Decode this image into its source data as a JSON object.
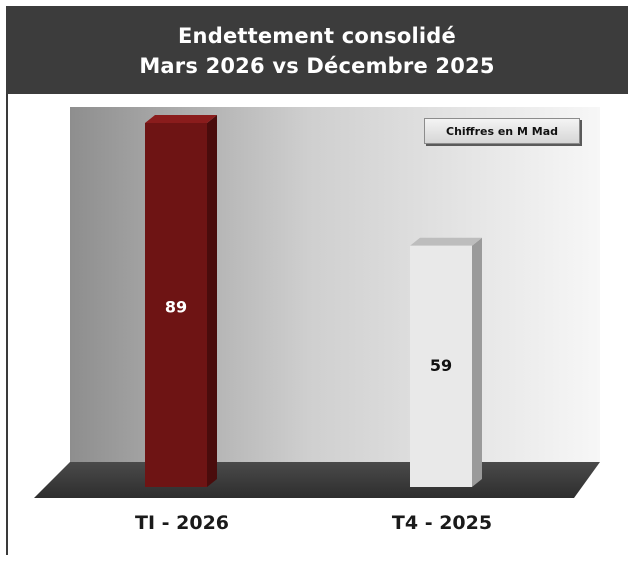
{
  "header": {
    "title_line1": "Endettement consolidé",
    "title_line2": "Mars 2026 vs Décembre 2025"
  },
  "badge": {
    "text": "Chiffres en M Mad"
  },
  "colors": {
    "bar1": "#6e1414",
    "bar2": "#e9e9e9",
    "floor": "#3d3d3d",
    "header_bg": "#3c3c3c"
  },
  "chart_data": {
    "type": "bar",
    "title": "Endettement consolidé Mars 2026 vs Décembre 2025",
    "categories": [
      "TI - 2026",
      "T4 - 2025"
    ],
    "values": [
      89,
      59
    ],
    "data_labels": [
      "89",
      "59"
    ],
    "ylim": [
      0,
      100
    ],
    "grid": false,
    "legend": "none",
    "annotation": "Chiffres en M Mad"
  }
}
